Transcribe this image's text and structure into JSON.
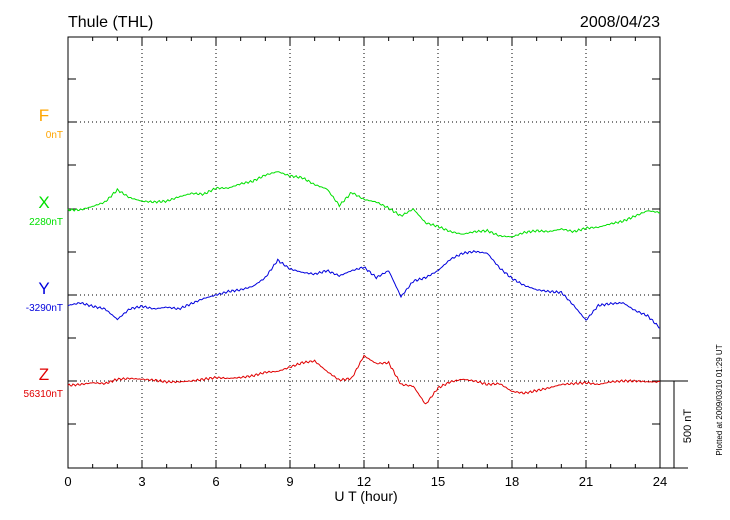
{
  "header": {
    "station": "Thule (THL)",
    "date": "2008/04/23"
  },
  "footer_note": "Plotted at 2009/03/10 01:29 UT",
  "scale_label": "500 nT",
  "chart_data": {
    "type": "line",
    "title": "Thule (THL)",
    "xlabel": "U T (hour)",
    "ylabel": "",
    "xlim": [
      0,
      24
    ],
    "x_ticks": [
      0,
      3,
      6,
      9,
      12,
      15,
      18,
      21,
      24
    ],
    "grid": true,
    "y_units": "nT (offset from baseline; 500 nT scale bar)",
    "series": [
      {
        "name": "F",
        "baseline_label": "0nT",
        "color": "#ffa500",
        "x": [],
        "values": []
      },
      {
        "name": "X",
        "baseline_label": "2280nT",
        "color": "#00e000",
        "x": [
          0,
          0.5,
          1,
          1.5,
          2,
          2.5,
          3,
          3.5,
          4,
          4.5,
          5,
          5.5,
          6,
          6.5,
          7,
          7.5,
          8,
          8.5,
          9,
          9.5,
          10,
          10.5,
          11,
          11.5,
          12,
          12.5,
          13,
          13.5,
          14,
          14.5,
          15,
          15.5,
          16,
          16.5,
          17,
          17.5,
          18,
          18.5,
          19,
          19.5,
          20,
          20.5,
          21,
          21.5,
          22,
          22.5,
          23,
          23.5,
          24
        ],
        "values": [
          -5,
          -5,
          15,
          40,
          110,
          65,
          45,
          40,
          45,
          70,
          90,
          85,
          120,
          120,
          145,
          160,
          195,
          215,
          190,
          180,
          140,
          115,
          20,
          95,
          55,
          40,
          5,
          -40,
          0,
          -80,
          -100,
          -130,
          -145,
          -130,
          -125,
          -155,
          -160,
          -135,
          -125,
          -130,
          -115,
          -130,
          -110,
          -105,
          -85,
          -70,
          -40,
          -10,
          -20
        ]
      },
      {
        "name": "Y",
        "baseline_label": "-3290nT",
        "color": "#0000dd",
        "x": [
          0,
          0.5,
          1,
          1.5,
          2,
          2.5,
          3,
          3.5,
          4,
          4.5,
          5,
          5.5,
          6,
          6.5,
          7,
          7.5,
          8,
          8.5,
          9,
          9.5,
          10,
          10.5,
          11,
          11.5,
          12,
          12.5,
          13,
          13.5,
          14,
          14.5,
          15,
          15.5,
          16,
          16.5,
          17,
          17.5,
          18,
          18.5,
          19,
          19.5,
          20,
          20.5,
          21,
          21.5,
          22,
          22.5,
          23,
          23.5,
          24
        ],
        "values": [
          -60,
          -45,
          -65,
          -80,
          -140,
          -80,
          -65,
          -80,
          -70,
          -80,
          -50,
          -20,
          0,
          20,
          30,
          50,
          100,
          200,
          150,
          130,
          120,
          140,
          110,
          140,
          160,
          100,
          140,
          -10,
          80,
          100,
          140,
          205,
          240,
          250,
          240,
          155,
          95,
          55,
          30,
          20,
          15,
          -60,
          -145,
          -60,
          -50,
          -45,
          -90,
          -120,
          -190
        ]
      },
      {
        "name": "Z",
        "baseline_label": "56310nT",
        "color": "#e00000",
        "x": [
          0,
          0.5,
          1,
          1.5,
          2,
          2.5,
          3,
          3.5,
          4,
          4.5,
          5,
          5.5,
          6,
          6.5,
          7,
          7.5,
          8,
          8.5,
          9,
          9.5,
          10,
          10.5,
          11,
          11.5,
          12,
          12.5,
          13,
          13.5,
          14,
          14.5,
          15,
          15.5,
          16,
          16.5,
          17,
          17.5,
          18,
          18.5,
          19,
          19.5,
          20,
          20.5,
          21,
          21.5,
          22,
          22.5,
          23,
          23.5,
          24
        ],
        "values": [
          -25,
          -20,
          -10,
          -15,
          10,
          15,
          10,
          5,
          -5,
          -5,
          0,
          10,
          20,
          15,
          20,
          30,
          50,
          55,
          80,
          105,
          115,
          55,
          5,
          15,
          145,
          100,
          105,
          -20,
          -30,
          -135,
          -40,
          -5,
          10,
          0,
          -20,
          -15,
          -60,
          -70,
          -55,
          -40,
          -20,
          -15,
          -10,
          -20,
          -5,
          0,
          0,
          -5,
          -5
        ]
      }
    ]
  }
}
